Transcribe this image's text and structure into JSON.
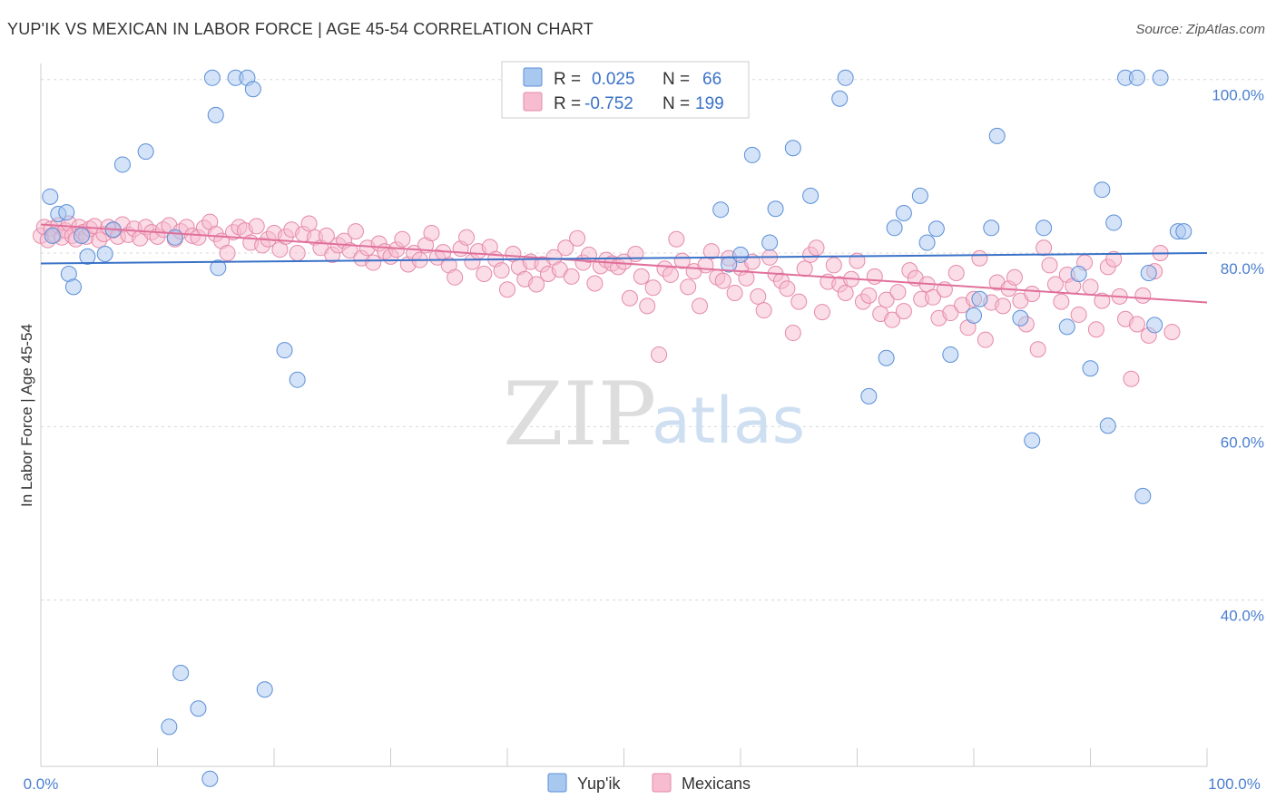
{
  "header": {
    "title": "YUP'IK VS MEXICAN IN LABOR FORCE | AGE 45-54 CORRELATION CHART",
    "source": "Source: ZipAtlas.com"
  },
  "watermark": {
    "zip": "ZIP",
    "atlas": "atlas"
  },
  "colors": {
    "yupik_fill": "#a9c8f0",
    "yupik_stroke": "#5a8fd8",
    "yupik_line": "#3a72c8",
    "mexican_fill": "#f7bcd0",
    "mexican_stroke": "#e58aa8",
    "mexican_line": "#e0709a",
    "grid": "#d8d8d8",
    "tick_text": "#4a7fd0"
  },
  "legend": {
    "rows": [
      {
        "r_label": "R =",
        "r_value": "0.025",
        "n_label": "N =",
        "n_value": "66"
      },
      {
        "r_label": "R =",
        "r_value": "-0.752",
        "n_label": "N =",
        "n_value": "199"
      }
    ]
  },
  "chart_data": {
    "type": "scatter",
    "title": "YUP'IK VS MEXICAN IN LABOR FORCE | AGE 45-54 CORRELATION CHART",
    "ylabel": "In Labor Force | Age 45-54",
    "xlabel": "",
    "xlim": [
      0,
      100
    ],
    "ylim": [
      20,
      103
    ],
    "x_tick_labels": [
      "0.0%",
      "100.0%"
    ],
    "y_ticks": [
      100,
      80,
      60,
      40
    ],
    "y_tick_labels": [
      "100.0%",
      "80.0%",
      "60.0%",
      "40.0%"
    ],
    "legend_position": "top-center",
    "grid": true,
    "series": [
      {
        "name": "Yup'ik",
        "r": 0.025,
        "n": 66,
        "trend": {
          "x": [
            0,
            100
          ],
          "y": [
            78.8,
            80.0
          ]
        },
        "points": [
          [
            0.8,
            86.5
          ],
          [
            1.5,
            84.5
          ],
          [
            2.2,
            84.7
          ],
          [
            1.0,
            82.0
          ],
          [
            3.5,
            82.0
          ],
          [
            2.4,
            77.6
          ],
          [
            2.8,
            76.1
          ],
          [
            4.0,
            79.6
          ],
          [
            5.5,
            79.9
          ],
          [
            6.2,
            82.7
          ],
          [
            7.0,
            90.2
          ],
          [
            9.0,
            91.7
          ],
          [
            11.5,
            81.8
          ],
          [
            11.0,
            25.4
          ],
          [
            13.5,
            27.5
          ],
          [
            14.5,
            19.4
          ],
          [
            12.0,
            31.6
          ],
          [
            15.0,
            95.9
          ],
          [
            14.7,
            100.2
          ],
          [
            16.7,
            100.2
          ],
          [
            17.7,
            100.2
          ],
          [
            18.2,
            98.9
          ],
          [
            15.2,
            78.3
          ],
          [
            19.2,
            29.7
          ],
          [
            20.9,
            68.8
          ],
          [
            22.0,
            65.4
          ],
          [
            57.8,
            97.8
          ],
          [
            58.3,
            85.0
          ],
          [
            61.0,
            91.3
          ],
          [
            63.0,
            85.1
          ],
          [
            64.5,
            92.1
          ],
          [
            66.0,
            86.6
          ],
          [
            68.5,
            97.8
          ],
          [
            69.0,
            100.2
          ],
          [
            71.0,
            63.5
          ],
          [
            72.5,
            67.9
          ],
          [
            73.2,
            82.9
          ],
          [
            74.0,
            84.6
          ],
          [
            75.4,
            86.6
          ],
          [
            76.0,
            81.2
          ],
          [
            76.8,
            82.8
          ],
          [
            78.0,
            68.3
          ],
          [
            80.0,
            72.8
          ],
          [
            80.5,
            74.7
          ],
          [
            81.5,
            82.9
          ],
          [
            82.0,
            93.5
          ],
          [
            84.0,
            72.5
          ],
          [
            85.0,
            58.4
          ],
          [
            86.0,
            82.9
          ],
          [
            88.0,
            71.5
          ],
          [
            89.0,
            77.6
          ],
          [
            90.0,
            66.7
          ],
          [
            91.0,
            87.3
          ],
          [
            91.5,
            60.1
          ],
          [
            92.0,
            83.5
          ],
          [
            93.0,
            100.2
          ],
          [
            94.0,
            100.2
          ],
          [
            94.5,
            52.0
          ],
          [
            95.0,
            77.7
          ],
          [
            95.5,
            71.7
          ],
          [
            96.0,
            100.2
          ],
          [
            97.5,
            82.5
          ],
          [
            98.0,
            82.5
          ],
          [
            62.5,
            81.2
          ],
          [
            60.0,
            79.8
          ],
          [
            59.0,
            78.7
          ]
        ]
      },
      {
        "name": "Mexicans",
        "r": -0.752,
        "n": 199,
        "trend": {
          "x": [
            0,
            100
          ],
          "y": [
            83.3,
            74.3
          ]
        },
        "points": [
          [
            0.0,
            82.0
          ],
          [
            0.3,
            83.0
          ],
          [
            0.6,
            81.5
          ],
          [
            0.9,
            82.8
          ],
          [
            1.2,
            82.1
          ],
          [
            1.5,
            83.2
          ],
          [
            1.8,
            81.8
          ],
          [
            2.1,
            82.6
          ],
          [
            2.4,
            83.4
          ],
          [
            2.7,
            82.0
          ],
          [
            3.0,
            81.6
          ],
          [
            3.3,
            83.0
          ],
          [
            3.6,
            82.4
          ],
          [
            3.9,
            81.9
          ],
          [
            4.2,
            82.8
          ],
          [
            4.6,
            83.1
          ],
          [
            5.0,
            81.5
          ],
          [
            5.4,
            82.2
          ],
          [
            5.8,
            83.0
          ],
          [
            6.2,
            82.6
          ],
          [
            6.6,
            81.9
          ],
          [
            7.0,
            83.3
          ],
          [
            7.5,
            82.1
          ],
          [
            8.0,
            82.8
          ],
          [
            8.5,
            81.7
          ],
          [
            9.0,
            83.0
          ],
          [
            9.5,
            82.4
          ],
          [
            10.0,
            81.9
          ],
          [
            10.5,
            82.7
          ],
          [
            11.0,
            83.2
          ],
          [
            11.5,
            81.6
          ],
          [
            12.0,
            82.5
          ],
          [
            12.5,
            83.0
          ],
          [
            13.0,
            82.0
          ],
          [
            13.5,
            81.8
          ],
          [
            14.0,
            82.9
          ],
          [
            14.5,
            83.6
          ],
          [
            15.0,
            82.2
          ],
          [
            15.5,
            81.4
          ],
          [
            16.0,
            80.0
          ],
          [
            16.5,
            82.4
          ],
          [
            17.0,
            83.0
          ],
          [
            17.5,
            82.6
          ],
          [
            18.0,
            81.2
          ],
          [
            18.5,
            83.1
          ],
          [
            19.0,
            80.9
          ],
          [
            19.5,
            81.6
          ],
          [
            20.0,
            82.3
          ],
          [
            20.5,
            80.4
          ],
          [
            21.0,
            81.9
          ],
          [
            21.5,
            82.7
          ],
          [
            22.0,
            80.0
          ],
          [
            22.5,
            82.2
          ],
          [
            23.0,
            83.4
          ],
          [
            23.5,
            81.8
          ],
          [
            24.0,
            80.6
          ],
          [
            24.5,
            82.0
          ],
          [
            25.0,
            79.8
          ],
          [
            25.5,
            80.9
          ],
          [
            26.0,
            81.4
          ],
          [
            26.5,
            80.3
          ],
          [
            27.0,
            82.5
          ],
          [
            27.5,
            79.4
          ],
          [
            28.0,
            80.6
          ],
          [
            28.5,
            78.9
          ],
          [
            29.0,
            81.1
          ],
          [
            29.5,
            80.2
          ],
          [
            30.0,
            79.6
          ],
          [
            30.5,
            80.4
          ],
          [
            31.0,
            81.6
          ],
          [
            31.5,
            78.7
          ],
          [
            32.0,
            80.0
          ],
          [
            32.5,
            79.2
          ],
          [
            33.0,
            80.9
          ],
          [
            33.5,
            82.3
          ],
          [
            34.0,
            79.5
          ],
          [
            34.5,
            80.1
          ],
          [
            35.0,
            78.6
          ],
          [
            35.5,
            77.2
          ],
          [
            36.0,
            80.5
          ],
          [
            36.5,
            81.8
          ],
          [
            37.0,
            79.0
          ],
          [
            37.5,
            80.2
          ],
          [
            38.0,
            77.6
          ],
          [
            38.5,
            80.7
          ],
          [
            39.0,
            79.3
          ],
          [
            39.5,
            78.0
          ],
          [
            40.0,
            75.8
          ],
          [
            40.5,
            79.9
          ],
          [
            41.0,
            78.4
          ],
          [
            41.5,
            77.0
          ],
          [
            42.0,
            79.0
          ],
          [
            42.5,
            76.4
          ],
          [
            43.0,
            78.7
          ],
          [
            43.5,
            77.6
          ],
          [
            44.0,
            79.5
          ],
          [
            44.5,
            78.1
          ],
          [
            45.0,
            80.6
          ],
          [
            45.5,
            77.3
          ],
          [
            46.0,
            81.7
          ],
          [
            46.5,
            78.9
          ],
          [
            47.0,
            79.8
          ],
          [
            47.5,
            76.5
          ],
          [
            48.0,
            78.5
          ],
          [
            48.5,
            79.2
          ],
          [
            49.0,
            78.8
          ],
          [
            49.5,
            78.4
          ],
          [
            50.0,
            79.0
          ],
          [
            50.5,
            74.8
          ],
          [
            51.0,
            79.9
          ],
          [
            51.5,
            77.3
          ],
          [
            52.0,
            73.9
          ],
          [
            52.5,
            76.0
          ],
          [
            53.0,
            68.3
          ],
          [
            53.5,
            78.2
          ],
          [
            54.0,
            77.5
          ],
          [
            54.5,
            81.6
          ],
          [
            55.0,
            79.1
          ],
          [
            55.5,
            76.1
          ],
          [
            56.0,
            77.9
          ],
          [
            56.5,
            73.9
          ],
          [
            57.0,
            78.6
          ],
          [
            57.5,
            80.2
          ],
          [
            58.0,
            77.2
          ],
          [
            58.5,
            76.8
          ],
          [
            59.0,
            79.4
          ],
          [
            59.5,
            75.4
          ],
          [
            60.0,
            78.3
          ],
          [
            60.5,
            77.1
          ],
          [
            61.0,
            79.0
          ],
          [
            61.5,
            75.0
          ],
          [
            62.0,
            73.4
          ],
          [
            62.5,
            79.5
          ],
          [
            63.0,
            77.6
          ],
          [
            63.5,
            76.8
          ],
          [
            64.0,
            75.9
          ],
          [
            64.5,
            70.8
          ],
          [
            65.0,
            74.4
          ],
          [
            65.5,
            78.2
          ],
          [
            66.0,
            79.8
          ],
          [
            66.5,
            80.6
          ],
          [
            67.0,
            73.2
          ],
          [
            67.5,
            76.7
          ],
          [
            68.0,
            78.6
          ],
          [
            68.5,
            76.4
          ],
          [
            69.0,
            75.4
          ],
          [
            69.5,
            77.0
          ],
          [
            70.0,
            79.1
          ],
          [
            70.5,
            74.4
          ],
          [
            71.0,
            75.1
          ],
          [
            71.5,
            77.3
          ],
          [
            72.0,
            73.0
          ],
          [
            72.5,
            74.6
          ],
          [
            73.0,
            72.3
          ],
          [
            73.5,
            75.5
          ],
          [
            74.0,
            73.3
          ],
          [
            74.5,
            78.0
          ],
          [
            75.0,
            77.1
          ],
          [
            75.5,
            74.7
          ],
          [
            76.0,
            76.4
          ],
          [
            76.5,
            74.9
          ],
          [
            77.0,
            72.5
          ],
          [
            77.5,
            75.8
          ],
          [
            78.0,
            73.1
          ],
          [
            78.5,
            77.7
          ],
          [
            79.0,
            74.0
          ],
          [
            79.5,
            71.4
          ],
          [
            80.0,
            74.7
          ],
          [
            80.5,
            79.4
          ],
          [
            81.0,
            70.0
          ],
          [
            81.5,
            74.3
          ],
          [
            82.0,
            76.6
          ],
          [
            82.5,
            73.9
          ],
          [
            83.0,
            75.9
          ],
          [
            83.5,
            77.2
          ],
          [
            84.0,
            74.5
          ],
          [
            84.5,
            71.8
          ],
          [
            85.0,
            75.3
          ],
          [
            85.5,
            68.9
          ],
          [
            86.0,
            80.6
          ],
          [
            86.5,
            78.6
          ],
          [
            87.0,
            76.4
          ],
          [
            87.5,
            74.4
          ],
          [
            88.0,
            77.5
          ],
          [
            88.5,
            76.2
          ],
          [
            89.0,
            72.9
          ],
          [
            89.5,
            78.9
          ],
          [
            90.0,
            76.1
          ],
          [
            90.5,
            71.2
          ],
          [
            91.0,
            74.5
          ],
          [
            91.5,
            78.4
          ],
          [
            92.0,
            79.3
          ],
          [
            92.5,
            75.0
          ],
          [
            93.0,
            72.4
          ],
          [
            93.5,
            65.5
          ],
          [
            94.0,
            71.8
          ],
          [
            94.5,
            75.1
          ],
          [
            95.0,
            70.5
          ],
          [
            95.5,
            77.9
          ],
          [
            96.0,
            80.0
          ],
          [
            97.0,
            70.9
          ]
        ]
      }
    ]
  },
  "bottom_legend": {
    "items": [
      "Yup'ik",
      "Mexicans"
    ]
  }
}
